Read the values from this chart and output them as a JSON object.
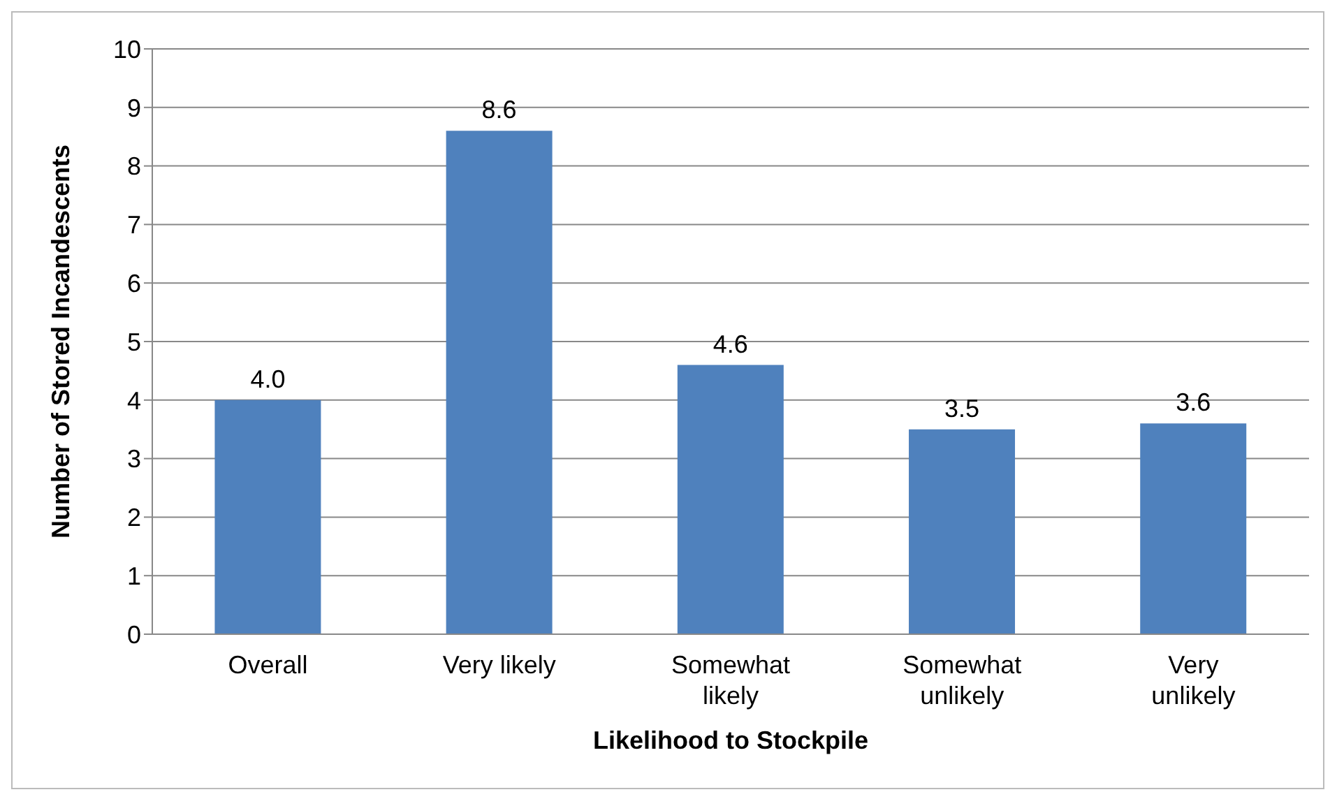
{
  "chart_data": {
    "type": "bar",
    "xlabel": "Likelihood to Stockpile",
    "ylabel": "Number of Stored Incandescents",
    "categories": [
      "Overall",
      "Very likely",
      "Somewhat likely",
      "Somewhat unlikely",
      "Very unlikely"
    ],
    "values": [
      4.0,
      8.6,
      4.6,
      3.5,
      3.6
    ],
    "value_labels": [
      "4.0",
      "8.6",
      "4.6",
      "3.5",
      "3.6"
    ],
    "color": "#4f81bd",
    "ylim": [
      0,
      10
    ],
    "yticks": [
      0,
      1,
      2,
      3,
      4,
      5,
      6,
      7,
      8,
      9,
      10
    ],
    "grid": "y",
    "legend": false
  }
}
